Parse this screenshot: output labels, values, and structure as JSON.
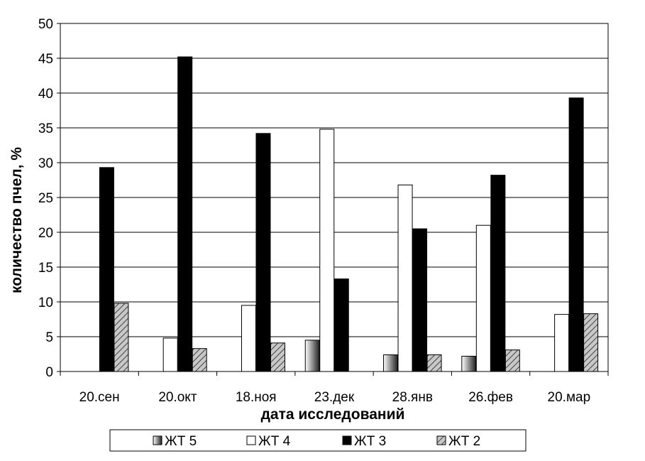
{
  "chart_data": {
    "type": "bar",
    "title": "",
    "xlabel": "дата исследований",
    "ylabel": "количество пчел, %",
    "ylim": [
      0,
      50
    ],
    "yticks": [
      0,
      5,
      10,
      15,
      20,
      25,
      30,
      35,
      40,
      45,
      50
    ],
    "categories": [
      "20.сен",
      "20.окт",
      "18.ноя",
      "23.дек",
      "28.янв",
      "26.фев",
      "20.мар"
    ],
    "series": [
      {
        "name": "ЖТ 5",
        "values": [
          0,
          0,
          0,
          4.5,
          2.4,
          2.2,
          0
        ]
      },
      {
        "name": "ЖТ 4",
        "values": [
          0,
          4.8,
          9.5,
          34.8,
          26.8,
          21.0,
          8.2
        ]
      },
      {
        "name": "ЖТ 3",
        "values": [
          29.3,
          45.2,
          34.2,
          13.3,
          20.5,
          28.2,
          39.3
        ]
      },
      {
        "name": "ЖТ 2",
        "values": [
          9.8,
          3.3,
          4.1,
          0,
          2.4,
          3.1,
          8.3
        ]
      }
    ],
    "grid": true,
    "legend_position": "bottom"
  },
  "colors": {
    "ЖТ 5": "gradient-gray",
    "ЖТ 4": "#ffffff",
    "ЖТ 3": "#000000",
    "ЖТ 2": "hatched-gray"
  }
}
